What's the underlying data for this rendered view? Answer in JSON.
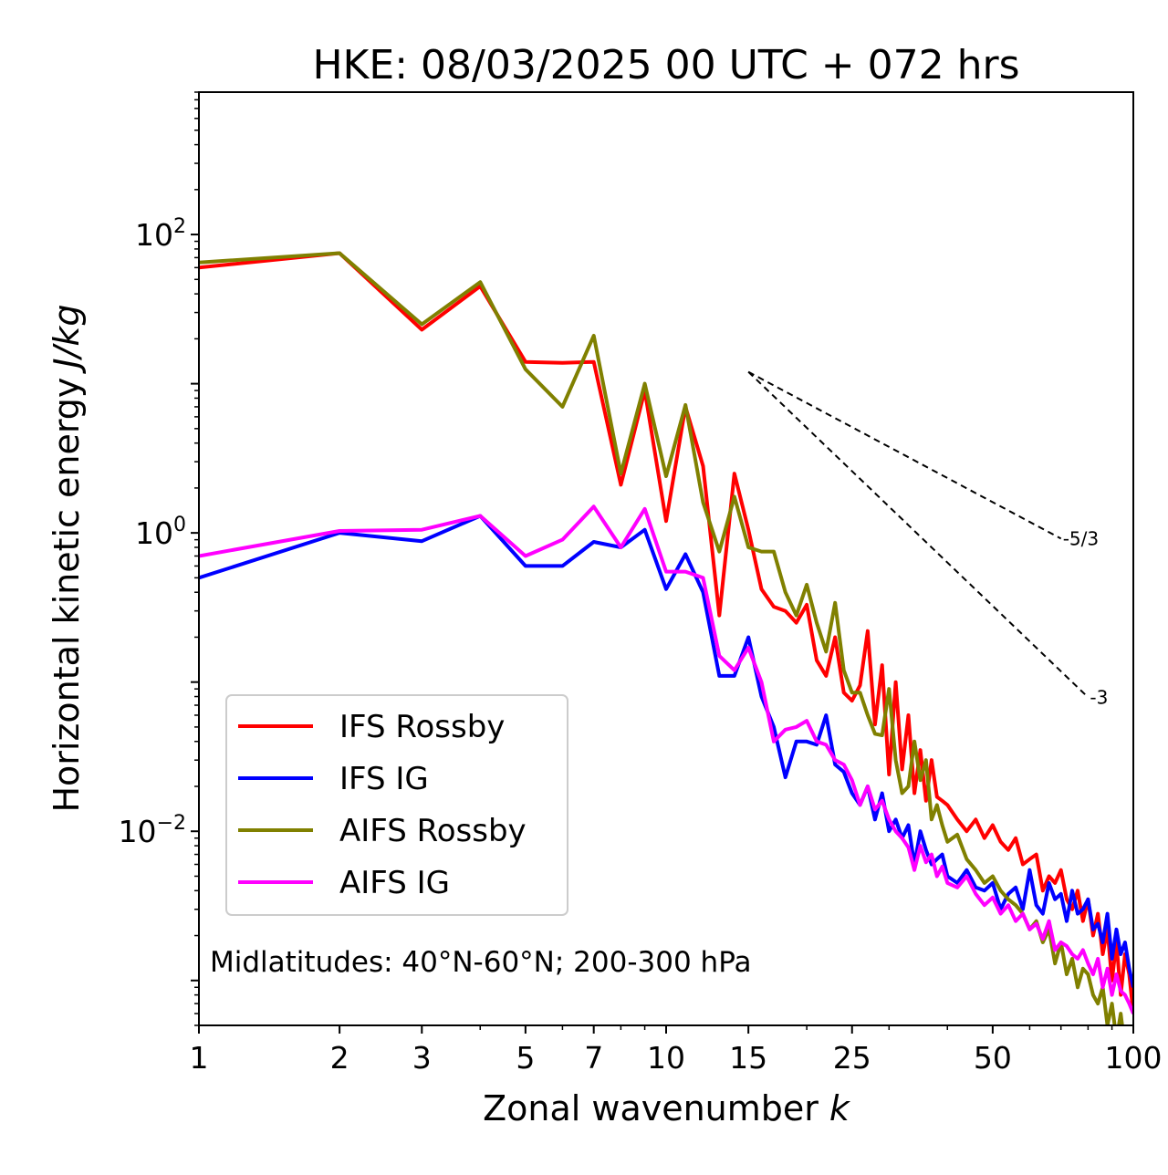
{
  "chart_data": {
    "type": "line",
    "title": "HKE: 08/03/2025 00 UTC + 072 hrs",
    "xlabel": "Zonal wavenumber",
    "xlabel_var": "k",
    "ylabel": "Horizontal kinetic energy",
    "ylabel_units": "J/kg",
    "xscale": "log",
    "yscale": "log",
    "xlim": [
      1,
      100
    ],
    "ylim": [
      0.0005,
      900
    ],
    "x_ticks": [
      1,
      2,
      3,
      5,
      7,
      10,
      15,
      25,
      50,
      100
    ],
    "x_tick_labels": [
      "1",
      "2",
      "3",
      "5",
      "7",
      "10",
      "15",
      "25",
      "50",
      "100"
    ],
    "y_ticks": [
      0.01,
      1,
      100
    ],
    "y_tick_labels": [
      {
        "base": "10",
        "exp": "−2"
      },
      {
        "base": "10",
        "exp": "0"
      },
      {
        "base": "10",
        "exp": "2"
      }
    ],
    "grid": false,
    "legend_position": "lower-left",
    "annotation": "Midlatitudes: 40°N-60°N; 200-300 hPa",
    "series": [
      {
        "name": "IFS Rossby",
        "color": "#ff0000",
        "x": [
          1,
          2,
          3,
          4,
          5,
          6,
          7,
          8,
          9,
          10,
          11,
          12,
          13,
          14,
          15,
          16,
          17,
          18,
          19,
          20,
          21,
          22,
          23,
          24,
          25,
          26,
          27,
          28,
          29,
          30,
          31,
          32,
          33,
          34,
          35,
          36,
          37,
          38,
          39,
          40,
          42,
          44,
          46,
          48,
          50,
          52,
          54,
          56,
          58,
          60,
          62,
          64,
          66,
          68,
          70,
          72,
          74,
          76,
          78,
          80,
          82,
          84,
          86,
          88,
          90,
          92,
          94,
          96,
          98,
          100
        ],
        "y": [
          60,
          75,
          23,
          45,
          14,
          13.8,
          14,
          2.1,
          9,
          1.2,
          7,
          2.8,
          0.28,
          2.5,
          1.05,
          0.42,
          0.32,
          0.3,
          0.25,
          0.33,
          0.14,
          0.11,
          0.2,
          0.085,
          0.075,
          0.095,
          0.22,
          0.052,
          0.13,
          0.024,
          0.1,
          0.026,
          0.06,
          0.018,
          0.035,
          0.016,
          0.03,
          0.017,
          0.016,
          0.015,
          0.012,
          0.01,
          0.012,
          0.009,
          0.011,
          0.0085,
          0.0075,
          0.009,
          0.006,
          0.0065,
          0.007,
          0.004,
          0.005,
          0.0045,
          0.0055,
          0.0035,
          0.003,
          0.004,
          0.0025,
          0.0035,
          0.002,
          0.0028,
          0.0015,
          0.0022,
          0.001,
          0.0018,
          0.0008,
          0.0015,
          0.0011,
          0.0006
        ]
      },
      {
        "name": "IFS IG",
        "color": "#0000ff",
        "x": [
          1,
          2,
          3,
          4,
          5,
          6,
          7,
          8,
          9,
          10,
          11,
          12,
          13,
          14,
          15,
          16,
          17,
          18,
          19,
          20,
          21,
          22,
          23,
          24,
          25,
          26,
          27,
          28,
          29,
          30,
          31,
          32,
          33,
          34,
          35,
          36,
          37,
          38,
          39,
          40,
          42,
          44,
          46,
          48,
          50,
          52,
          54,
          56,
          58,
          60,
          62,
          64,
          66,
          68,
          70,
          72,
          74,
          76,
          78,
          80,
          82,
          84,
          86,
          88,
          90,
          92,
          94,
          96,
          98,
          100
        ],
        "y": [
          0.5,
          1,
          0.88,
          1.3,
          0.6,
          0.6,
          0.87,
          0.8,
          1.05,
          0.42,
          0.72,
          0.4,
          0.11,
          0.11,
          0.2,
          0.08,
          0.05,
          0.023,
          0.04,
          0.04,
          0.038,
          0.06,
          0.028,
          0.025,
          0.018,
          0.015,
          0.02,
          0.012,
          0.018,
          0.01,
          0.012,
          0.009,
          0.011,
          0.006,
          0.01,
          0.0075,
          0.006,
          0.0065,
          0.007,
          0.005,
          0.0045,
          0.0055,
          0.0042,
          0.004,
          0.0045,
          0.003,
          0.0038,
          0.0042,
          0.003,
          0.0055,
          0.0032,
          0.0028,
          0.0045,
          0.0035,
          0.0038,
          0.0025,
          0.004,
          0.0028,
          0.003,
          0.0035,
          0.0022,
          0.0024,
          0.0018,
          0.0028,
          0.0014,
          0.0022,
          0.0015,
          0.0018,
          0.0012,
          0.0009
        ]
      },
      {
        "name": "AIFS Rossby",
        "color": "#808000",
        "x": [
          1,
          2,
          3,
          4,
          5,
          6,
          7,
          8,
          9,
          10,
          11,
          12,
          13,
          14,
          15,
          16,
          17,
          18,
          19,
          20,
          21,
          22,
          23,
          24,
          25,
          26,
          27,
          28,
          29,
          30,
          31,
          32,
          33,
          34,
          35,
          36,
          37,
          38,
          39,
          40,
          42,
          44,
          46,
          48,
          50,
          52,
          54,
          56,
          58,
          60,
          62,
          64,
          66,
          68,
          70,
          72,
          74,
          76,
          78,
          80,
          82,
          84,
          86,
          88,
          90,
          92,
          94,
          96,
          98,
          100
        ],
        "y": [
          65,
          75,
          25,
          48,
          12.5,
          7,
          21,
          2.5,
          10,
          2.4,
          7.2,
          1.6,
          0.75,
          1.75,
          0.8,
          0.75,
          0.75,
          0.4,
          0.28,
          0.45,
          0.25,
          0.16,
          0.34,
          0.12,
          0.085,
          0.085,
          0.06,
          0.045,
          0.044,
          0.09,
          0.03,
          0.018,
          0.02,
          0.04,
          0.022,
          0.03,
          0.012,
          0.015,
          0.011,
          0.0085,
          0.0095,
          0.0065,
          0.0055,
          0.0045,
          0.005,
          0.004,
          0.0035,
          0.0032,
          0.0028,
          0.0022,
          0.0025,
          0.0018,
          0.0022,
          0.0013,
          0.0018,
          0.0011,
          0.0014,
          0.0009,
          0.0012,
          0.0011,
          0.0008,
          0.0007,
          0.0009,
          0.0005,
          0.0007,
          0.0004,
          0.0006,
          0.00035,
          0.0004,
          0.0003
        ]
      },
      {
        "name": "AIFS IG",
        "color": "#ff00ff",
        "x": [
          1,
          2,
          3,
          4,
          5,
          6,
          7,
          8,
          9,
          10,
          11,
          12,
          13,
          14,
          15,
          16,
          17,
          18,
          19,
          20,
          21,
          22,
          23,
          24,
          25,
          26,
          27,
          28,
          29,
          30,
          31,
          32,
          33,
          34,
          35,
          36,
          37,
          38,
          39,
          40,
          42,
          44,
          46,
          48,
          50,
          52,
          54,
          56,
          58,
          60,
          62,
          64,
          66,
          68,
          70,
          72,
          74,
          76,
          78,
          80,
          82,
          84,
          86,
          88,
          90,
          92,
          94,
          96,
          98,
          100
        ],
        "y": [
          0.7,
          1.03,
          1.05,
          1.3,
          0.7,
          0.9,
          1.5,
          0.8,
          1.45,
          0.55,
          0.55,
          0.5,
          0.15,
          0.12,
          0.17,
          0.1,
          0.04,
          0.048,
          0.05,
          0.055,
          0.04,
          0.038,
          0.03,
          0.028,
          0.022,
          0.015,
          0.02,
          0.014,
          0.016,
          0.012,
          0.01,
          0.009,
          0.0078,
          0.0055,
          0.008,
          0.0062,
          0.007,
          0.005,
          0.0058,
          0.0045,
          0.0042,
          0.005,
          0.0038,
          0.0032,
          0.0036,
          0.0028,
          0.0032,
          0.0025,
          0.0028,
          0.0022,
          0.0024,
          0.0019,
          0.0025,
          0.0016,
          0.0018,
          0.0017,
          0.0015,
          0.0014,
          0.0016,
          0.0013,
          0.0011,
          0.0014,
          0.0009,
          0.0012,
          0.0008,
          0.0011,
          0.00085,
          0.0008,
          0.0007,
          0.0006
        ]
      }
    ],
    "reference_lines": [
      {
        "label": "-5/3",
        "x": [
          15,
          70
        ],
        "y": [
          12.0,
          0.916
        ]
      },
      {
        "label": "-3",
        "x": [
          15,
          80
        ],
        "y": [
          12.0,
          0.0791
        ]
      }
    ]
  }
}
